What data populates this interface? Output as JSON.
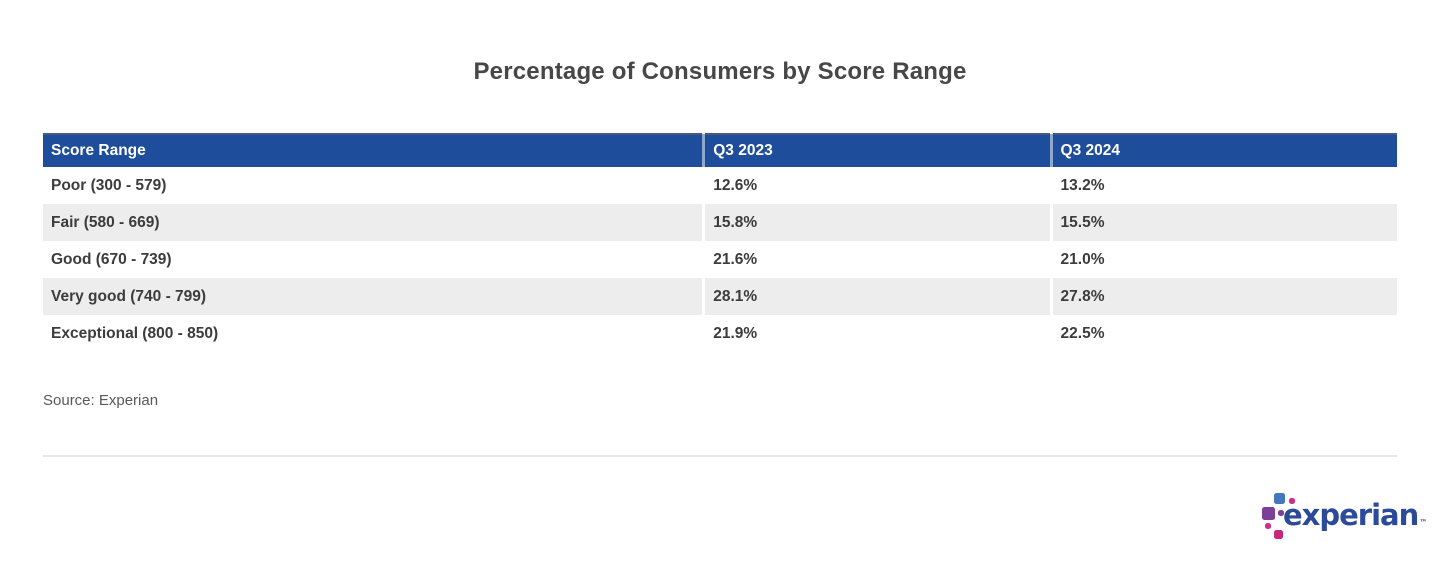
{
  "page": {
    "title": "Percentage of Consumers by Score Range",
    "source": "Source: Experian"
  },
  "table": {
    "columns": [
      "Score Range",
      "Q3 2023",
      "Q3 2024"
    ],
    "rows": [
      {
        "label": "Poor (300 - 579)",
        "q3_2023": "12.6%",
        "q3_2024": "13.2%"
      },
      {
        "label": "Fair (580 - 669)",
        "q3_2023": "15.8%",
        "q3_2024": "15.5%"
      },
      {
        "label": "Good (670 - 739)",
        "q3_2023": "21.6%",
        "q3_2024": "21.0%"
      },
      {
        "label": "Very good (740 - 799)",
        "q3_2023": "28.1%",
        "q3_2024": "27.8%"
      },
      {
        "label": "Exceptional (800 - 850)",
        "q3_2023": "21.9%",
        "q3_2024": "22.5%"
      }
    ]
  },
  "chart_data": {
    "type": "table",
    "title": "Percentage of Consumers by Score Range",
    "categories": [
      "Poor (300 - 579)",
      "Fair (580 - 669)",
      "Good (670 - 739)",
      "Very good (740 - 799)",
      "Exceptional (800 - 850)"
    ],
    "series": [
      {
        "name": "Q3 2023",
        "values": [
          12.6,
          15.8,
          21.6,
          28.1,
          21.9
        ]
      },
      {
        "name": "Q3 2024",
        "values": [
          13.2,
          15.5,
          21.0,
          27.8,
          22.5
        ]
      }
    ],
    "unit": "%",
    "source": "Source: Experian"
  },
  "logo": {
    "text": "experian",
    "trademark": "™"
  },
  "colors": {
    "header_bg": "#1E4D9B",
    "header_text": "#FFFFFF",
    "row_alt_bg": "#EDEDED",
    "body_text": "#3C3C3C",
    "title_text": "#474747",
    "source_text": "#595959",
    "divider": "#E7E7E7",
    "logo_text_blue": "#2B4A9A",
    "logo_square_blue": "#4377BE",
    "logo_square_purple": "#7D3F98",
    "logo_square_magenta": "#D02E87"
  }
}
